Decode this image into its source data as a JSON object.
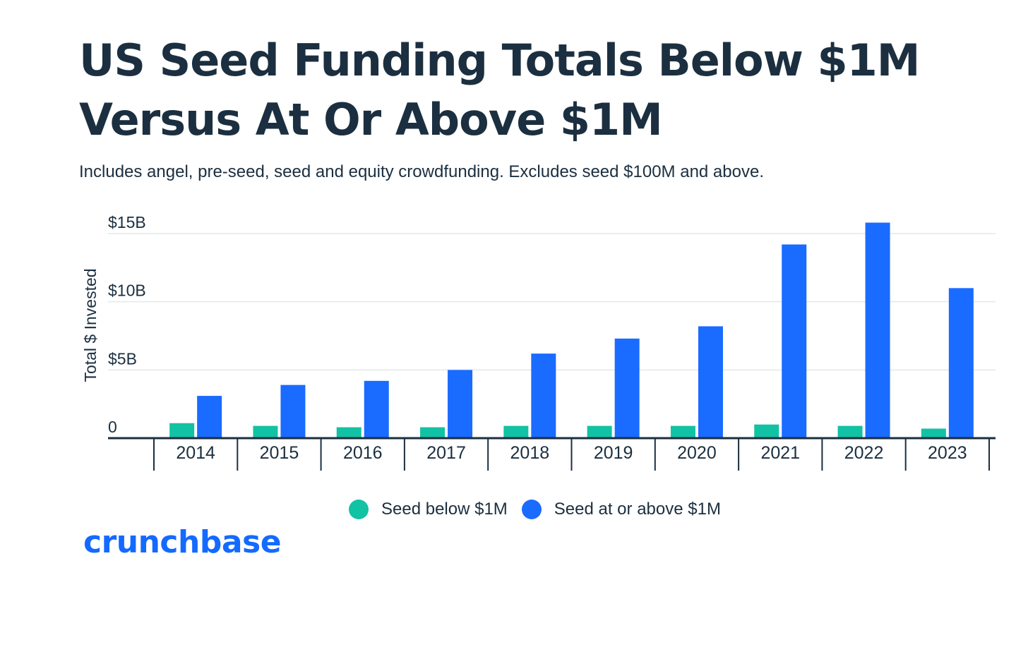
{
  "header": {
    "title": "US Seed Funding Totals Below $1M Versus At Or Above $1M",
    "subtitle": "Includes angel, pre-seed, seed and equity crowdfunding. Excludes seed $100M and above."
  },
  "brand": {
    "logo_text": "crunchbase"
  },
  "colors": {
    "seed_below": "#12c2a4",
    "seed_above": "#1a6bff",
    "text": "#1b2f40",
    "gridline": "#e4e7ea",
    "brand": "#146aff"
  },
  "chart_data": {
    "type": "bar",
    "title": "US Seed Funding Totals Below $1M Versus At Or Above $1M",
    "subtitle": "Includes angel, pre-seed, seed and equity crowdfunding. Excludes seed $100M and above.",
    "xlabel": "",
    "ylabel": "Total $ Invested",
    "ylim": [
      0,
      15
    ],
    "y_unit": "billions USD",
    "yticks": [
      0,
      5,
      10,
      15
    ],
    "ytick_labels": [
      "0",
      "$5B",
      "$10B",
      "$15B"
    ],
    "grid": true,
    "legend_position": "bottom-center",
    "categories": [
      "2014",
      "2015",
      "2016",
      "2017",
      "2018",
      "2019",
      "2020",
      "2021",
      "2022",
      "2023"
    ],
    "series": [
      {
        "name": "Seed below $1M",
        "values": [
          1.1,
          0.9,
          0.8,
          0.8,
          0.9,
          0.9,
          0.9,
          1.0,
          0.9,
          0.7
        ]
      },
      {
        "name": "Seed at or above $1M",
        "values": [
          3.1,
          3.9,
          4.2,
          5.0,
          6.2,
          7.3,
          8.2,
          14.2,
          15.8,
          11.0
        ]
      }
    ]
  }
}
